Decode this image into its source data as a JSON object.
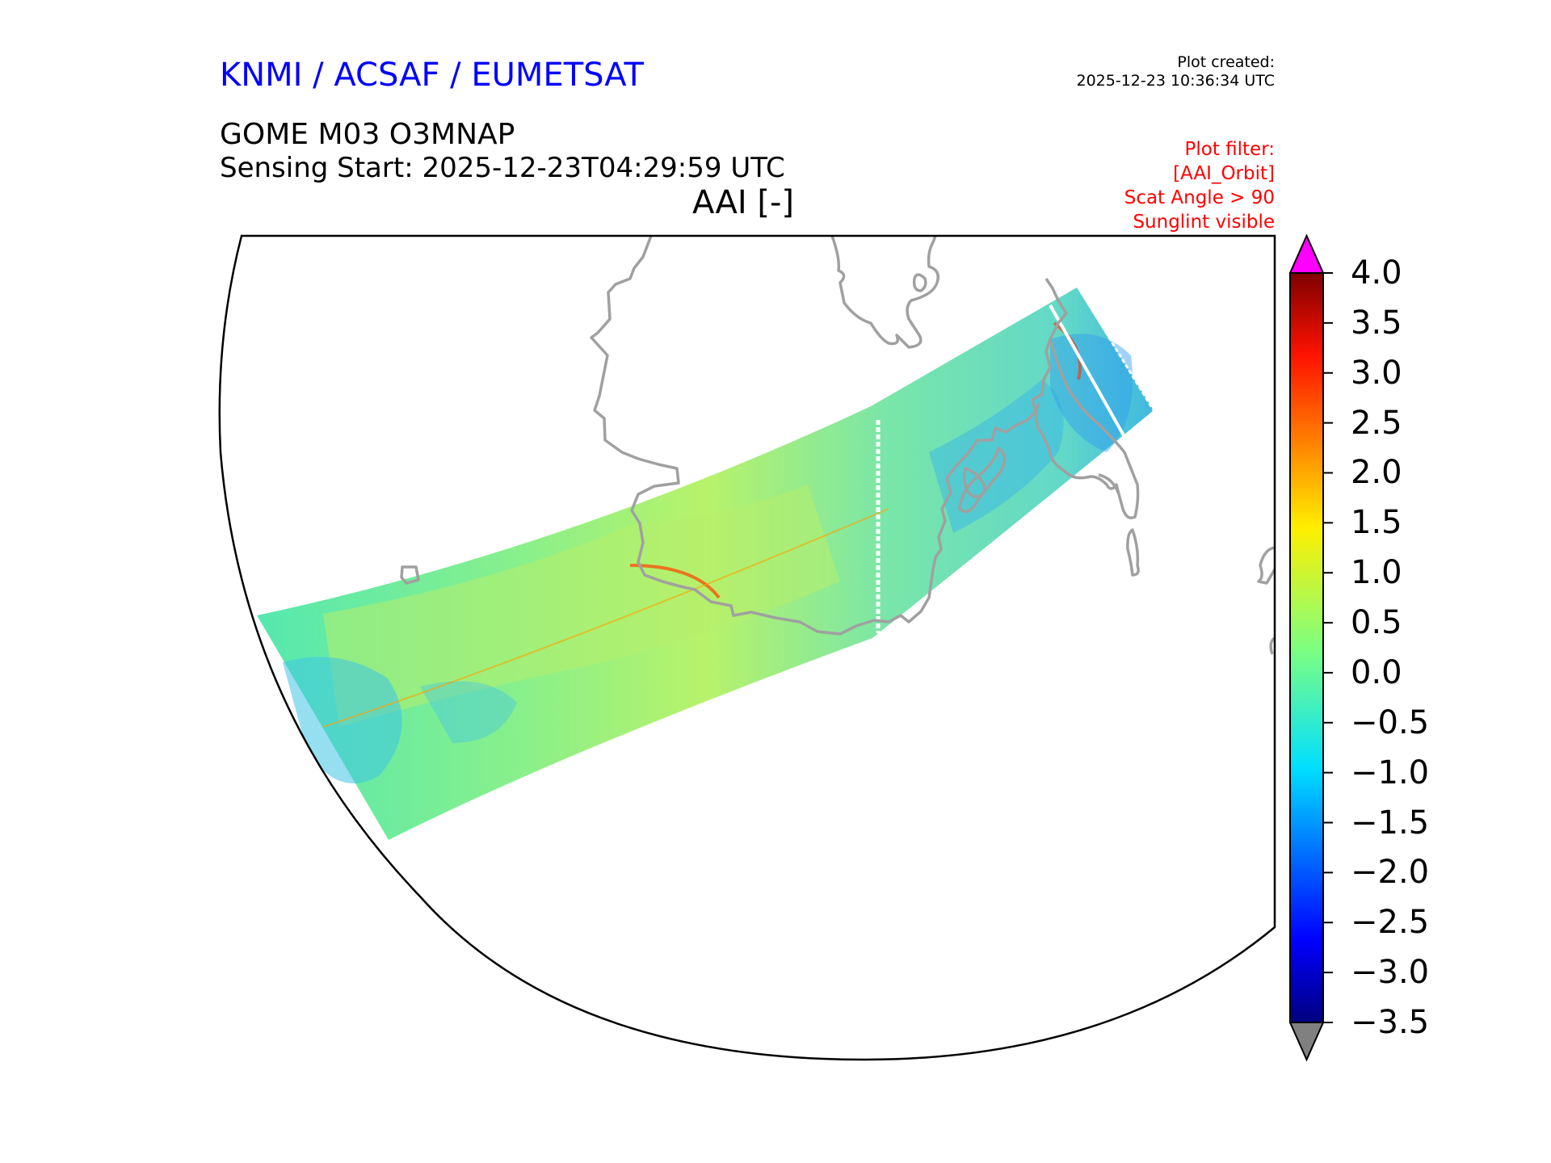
{
  "header": {
    "organization": "KNMI / ACSAF / EUMETSAT",
    "plot_created_label": "Plot created:",
    "plot_created_time": "2025-12-23 10:36:34 UTC",
    "product": "GOME M03 O3MNAP",
    "sensing_start": "Sensing Start: 2025-12-23T04:29:59 UTC",
    "map_title": "AAI [-]"
  },
  "filters": {
    "heading": "Plot filter:",
    "items": [
      "[AAI_Orbit]",
      "Scat Angle > 90",
      "Sunglint visible"
    ]
  },
  "colorbar": {
    "min": -3.5,
    "max": 4.0,
    "ticks": [
      "4.0",
      "3.5",
      "3.0",
      "2.5",
      "2.0",
      "1.5",
      "1.0",
      "0.5",
      "0.0",
      "−0.5",
      "−1.0",
      "−1.5",
      "−2.0",
      "−2.5",
      "−3.0",
      "−3.5"
    ],
    "colors": {
      "over": "#ff00ff",
      "under": "#808080",
      "coastline": "#a0a0a0"
    }
  }
}
